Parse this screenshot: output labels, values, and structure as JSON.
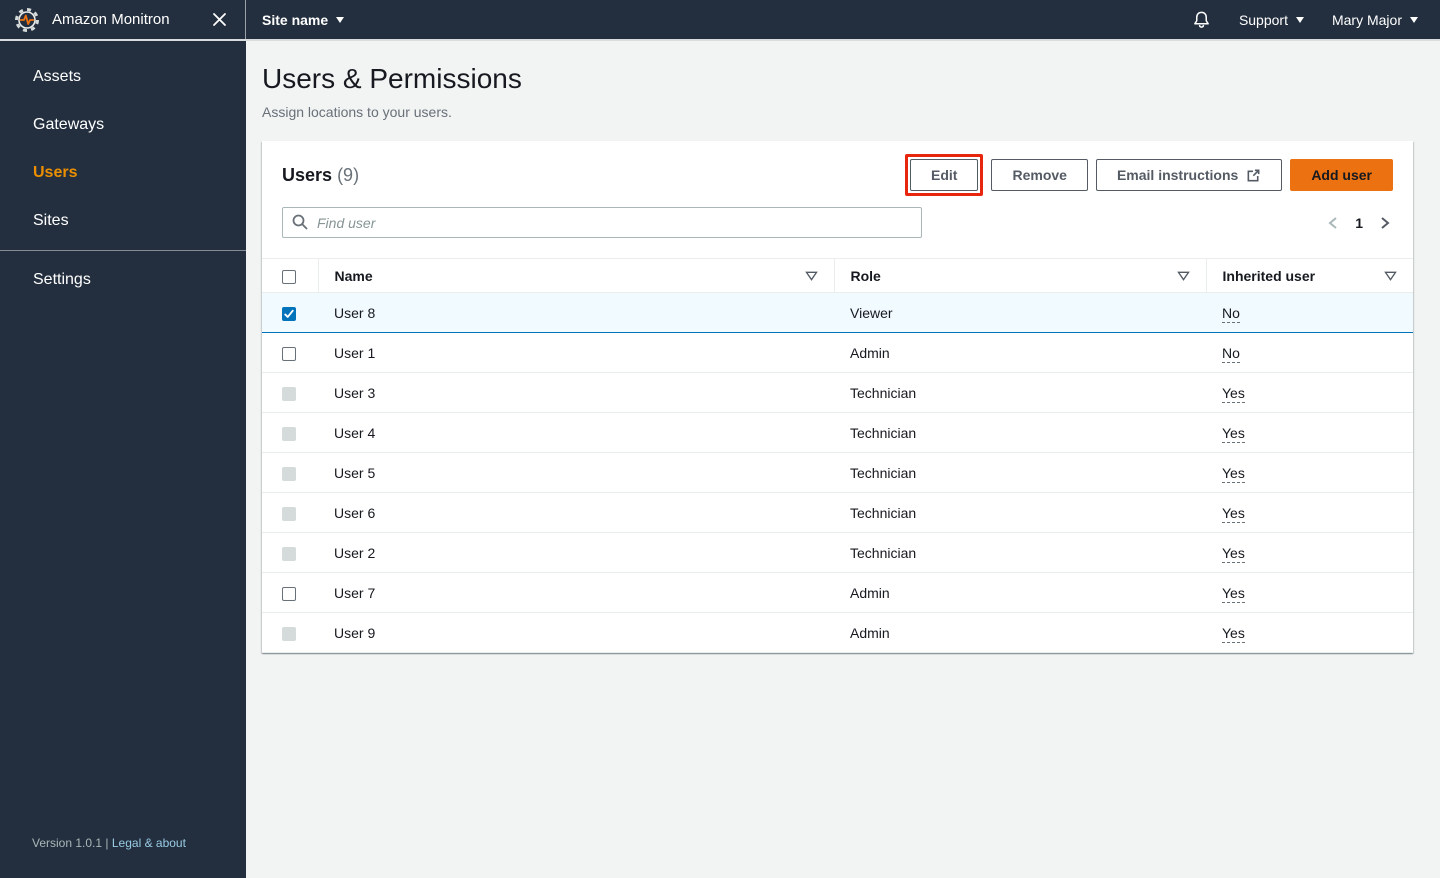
{
  "topbar": {
    "app_title": "Amazon Monitron",
    "site_menu_label": "Site name",
    "support_label": "Support",
    "user_name": "Mary Major"
  },
  "sidebar": {
    "items": [
      {
        "label": "Assets",
        "active": false
      },
      {
        "label": "Gateways",
        "active": false
      },
      {
        "label": "Users",
        "active": true
      },
      {
        "label": "Sites",
        "active": false
      }
    ],
    "settings_label": "Settings",
    "footer": {
      "version_text": "Version 1.0.1",
      "separator": "|",
      "legal_link": "Legal & about"
    }
  },
  "page": {
    "title": "Users & Permissions",
    "subtitle": "Assign locations to your users."
  },
  "panel": {
    "title": "Users",
    "count": "(9)",
    "buttons": {
      "edit": "Edit",
      "remove": "Remove",
      "email_instructions": "Email instructions",
      "add_user": "Add user"
    },
    "search_placeholder": "Find user",
    "pagination": {
      "current_page": "1",
      "prev_enabled": false,
      "next_enabled": true
    }
  },
  "table": {
    "columns": [
      "Name",
      "Role",
      "Inherited user"
    ],
    "rows": [
      {
        "name": "User 8",
        "role": "Viewer",
        "inherited": "No",
        "checkbox": "checked",
        "selected": true
      },
      {
        "name": "User 1",
        "role": "Admin",
        "inherited": "No",
        "checkbox": "unchecked",
        "selected": false
      },
      {
        "name": "User 3",
        "role": "Technician",
        "inherited": "Yes",
        "checkbox": "disabled",
        "selected": false
      },
      {
        "name": "User 4",
        "role": "Technician",
        "inherited": "Yes",
        "checkbox": "disabled",
        "selected": false
      },
      {
        "name": "User 5",
        "role": "Technician",
        "inherited": "Yes",
        "checkbox": "disabled",
        "selected": false
      },
      {
        "name": "User 6",
        "role": "Technician",
        "inherited": "Yes",
        "checkbox": "disabled",
        "selected": false
      },
      {
        "name": "User 2",
        "role": "Technician",
        "inherited": "Yes",
        "checkbox": "disabled",
        "selected": false
      },
      {
        "name": "User 7",
        "role": "Admin",
        "inherited": "Yes",
        "checkbox": "unchecked",
        "selected": false
      },
      {
        "name": "User 9",
        "role": "Admin",
        "inherited": "Yes",
        "checkbox": "disabled",
        "selected": false
      }
    ]
  },
  "icons": {
    "logo": "gear-with-pulse-icon",
    "close": "close-icon",
    "bell": "notifications-bell-icon",
    "caret": "caret-down-icon",
    "search": "search-icon",
    "external": "external-link-icon",
    "sort": "sort-down-icon",
    "chevrons": [
      "chevron-left-icon",
      "chevron-right-icon"
    ]
  },
  "colors": {
    "topbar_bg": "#232f3e",
    "accent_orange": "#ec7211",
    "nav_active_orange": "#eb8f00",
    "link_blue": "#99cbe4",
    "selected_row_bg": "#f1faff",
    "selected_border_blue": "#0073bb",
    "annotation_red": "#e8250d",
    "page_bg": "#f2f3f3"
  }
}
